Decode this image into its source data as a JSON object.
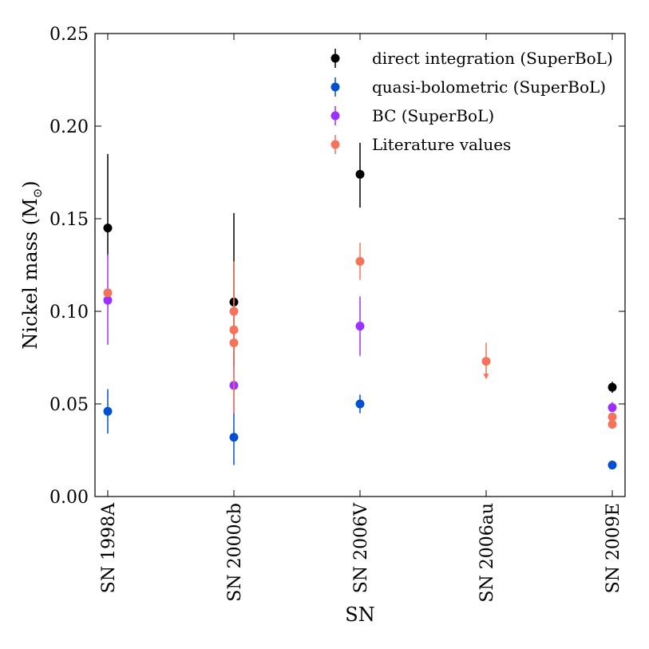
{
  "chart_data": {
    "type": "scatter",
    "title": "",
    "xlabel": "SN",
    "ylabel": "Nickel mass (M",
    "ylabel_sub": "⊙",
    "ylabel_close": ")",
    "ylim": [
      0.0,
      0.25
    ],
    "yticks": [
      0.0,
      0.05,
      0.1,
      0.15,
      0.2,
      0.25
    ],
    "ytick_labels": [
      "0.00",
      "0.05",
      "0.10",
      "0.15",
      "0.20",
      "0.25"
    ],
    "categories": [
      "SN 1998A",
      "SN 2000cb",
      "SN 2006V",
      "SN 2006au",
      "SN 2009E"
    ],
    "legend_position": "top-right",
    "series": [
      {
        "name": "direct integration (SuperBoL)",
        "color": "#000000",
        "points": [
          {
            "cat": 0,
            "y": 0.145,
            "lo": 0.13,
            "hi": 0.185
          },
          {
            "cat": 1,
            "y": 0.105,
            "lo": 0.07,
            "hi": 0.153
          },
          {
            "cat": 2,
            "y": 0.174,
            "lo": 0.156,
            "hi": 0.191
          },
          {
            "cat": 4,
            "y": 0.059,
            "lo": 0.056,
            "hi": 0.062
          }
        ]
      },
      {
        "name": "quasi-bolometric (SuperBoL)",
        "color": "#0050d0",
        "points": [
          {
            "cat": 0,
            "y": 0.046,
            "lo": 0.034,
            "hi": 0.058
          },
          {
            "cat": 1,
            "y": 0.032,
            "lo": 0.017,
            "hi": 0.045
          },
          {
            "cat": 2,
            "y": 0.05,
            "lo": 0.045,
            "hi": 0.055
          },
          {
            "cat": 4,
            "y": 0.017,
            "lo": 0.016,
            "hi": 0.018
          }
        ]
      },
      {
        "name": "BC (SuperBoL)",
        "color": "#9b30ff",
        "points": [
          {
            "cat": 0,
            "y": 0.106,
            "lo": 0.082,
            "hi": 0.131
          },
          {
            "cat": 1,
            "y": 0.06,
            "lo": 0.045,
            "hi": 0.076
          },
          {
            "cat": 2,
            "y": 0.092,
            "lo": 0.076,
            "hi": 0.108
          },
          {
            "cat": 4,
            "y": 0.048,
            "lo": 0.046,
            "hi": 0.051
          }
        ]
      },
      {
        "name": "Literature values",
        "color": "#f5735a",
        "points": [
          {
            "cat": 0,
            "y": 0.11,
            "lo": 0.11,
            "hi": 0.11
          },
          {
            "cat": 1,
            "y": 0.1,
            "lo": 0.09,
            "hi": 0.127
          },
          {
            "cat": 1,
            "y": 0.09,
            "lo": 0.08,
            "hi": 0.1
          },
          {
            "cat": 1,
            "y": 0.083,
            "lo": 0.045,
            "hi": 0.11
          },
          {
            "cat": 2,
            "y": 0.127,
            "lo": 0.117,
            "hi": 0.137
          },
          {
            "cat": 3,
            "y": 0.073,
            "lo": 0.065,
            "hi": 0.083,
            "upper_limit": true
          },
          {
            "cat": 4,
            "y": 0.043,
            "lo": 0.043,
            "hi": 0.043
          },
          {
            "cat": 4,
            "y": 0.039,
            "lo": 0.039,
            "hi": 0.039
          }
        ]
      }
    ]
  }
}
